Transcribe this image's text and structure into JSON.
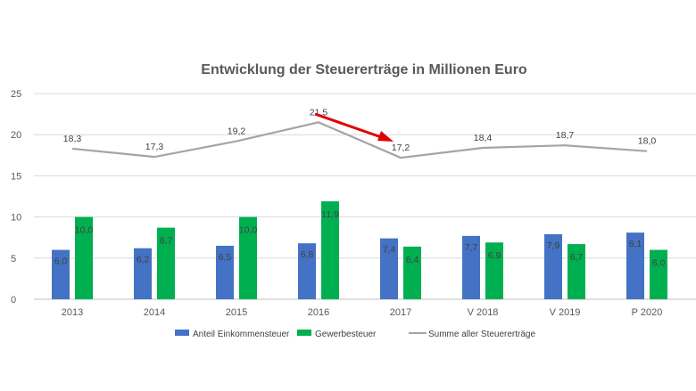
{
  "chart_data": {
    "type": "bar+line",
    "title": "Entwicklung der Steuererträge in Millionen Euro",
    "categories": [
      "2013",
      "2014",
      "2015",
      "2016",
      "2017",
      "V 2018",
      "V 2019",
      "P 2020"
    ],
    "ylim": [
      0,
      25
    ],
    "yticks": [
      0,
      5,
      10,
      15,
      20,
      25
    ],
    "grid": true,
    "legend_position": "bottom",
    "series": [
      {
        "name": "Anteil Einkommensteuer",
        "type": "bar",
        "color": "#4472C4",
        "values": [
          6.0,
          6.2,
          6.5,
          6.8,
          7.4,
          7.7,
          7.9,
          8.1
        ]
      },
      {
        "name": "Gewerbesteuer",
        "type": "bar",
        "color": "#00B050",
        "values": [
          10.0,
          8.7,
          10.0,
          11.9,
          6.4,
          6.9,
          6.7,
          6.0
        ]
      },
      {
        "name": "Summe aller Steuererträge",
        "type": "line",
        "color": "#A5A5A5",
        "values": [
          18.3,
          17.3,
          19.2,
          21.5,
          17.2,
          18.4,
          18.7,
          18.0
        ]
      }
    ],
    "annotation": {
      "type": "arrow",
      "color": "#E00000",
      "from_category": "2016",
      "to_category": "2017"
    }
  }
}
